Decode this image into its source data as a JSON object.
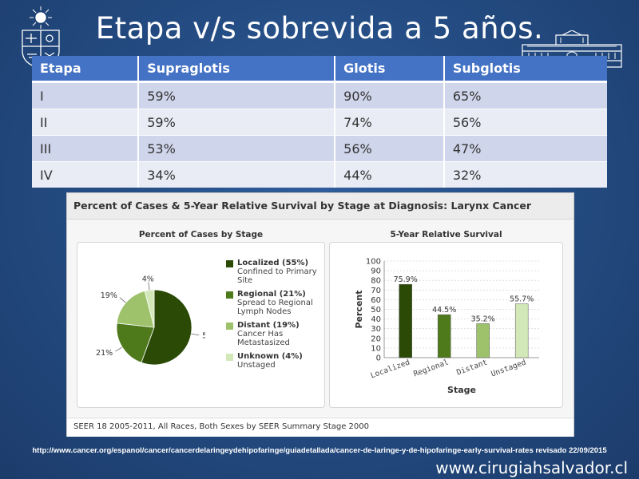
{
  "slide": {
    "title": "Etapa v/s sobrevida a 5 años.",
    "source_url": "http://www.cancer.org/espanol/cancer/cancerdelaringeydehipofaringe/guiadetallada/cancer-de-laringe-y-de-hipofaringe-early-survival-rates revisado 22/09/2015",
    "site_url": "www.cirugiahsalvador.cl"
  },
  "table": {
    "headers": [
      "Etapa",
      "Supraglotis",
      "Glotis",
      "Subglotis"
    ],
    "rows": [
      [
        "I",
        "59%",
        "90%",
        "65%"
      ],
      [
        "II",
        "59%",
        "74%",
        "56%"
      ],
      [
        "III",
        "53%",
        "56%",
        "47%"
      ],
      [
        "IV",
        "34%",
        "44%",
        "32%"
      ]
    ]
  },
  "figure": {
    "title": "Percent of Cases & 5-Year Relative Survival by Stage at Diagnosis: Larynx Cancer",
    "footer": "SEER 18 2005-2011, All Races, Both Sexes by SEER Summary Stage 2000",
    "legend": [
      {
        "name": "Localized (55%)",
        "desc": "Confined to Primary Site",
        "color": "#2a4a06"
      },
      {
        "name": "Regional (21%)",
        "desc": "Spread to Regional Lymph Nodes",
        "color": "#4f7a1c"
      },
      {
        "name": "Distant (19%)",
        "desc": "Cancer Has Metastasized",
        "color": "#9dc26b"
      },
      {
        "name": "Unknown (4%)",
        "desc": "Unstaged",
        "color": "#d3e8b8"
      }
    ]
  },
  "chart_data": [
    {
      "type": "pie",
      "title": "Percent of Cases by Stage",
      "categories": [
        "Localized",
        "Regional",
        "Distant",
        "Unknown"
      ],
      "values": [
        55,
        21,
        19,
        4
      ],
      "labels": [
        "55%",
        "21%",
        "19%",
        "4%"
      ],
      "colors": [
        "#2a4a06",
        "#4f7a1c",
        "#9dc26b",
        "#d3e8b8"
      ],
      "legend": "right"
    },
    {
      "type": "bar",
      "title": "5-Year Relative Survival",
      "categories": [
        "Localized",
        "Regional",
        "Distant",
        "Unstaged"
      ],
      "values": [
        75.9,
        44.5,
        35.2,
        55.7
      ],
      "labels": [
        "75.9%",
        "44.5%",
        "35.2%",
        "55.7%"
      ],
      "colors": [
        "#2a4a06",
        "#4f7a1c",
        "#9dc26b",
        "#d3e8b8"
      ],
      "xlabel": "Stage",
      "ylabel": "Percent",
      "ylim": [
        0,
        100
      ],
      "yticks": [
        0,
        10,
        20,
        30,
        40,
        50,
        60,
        70,
        80,
        90,
        100
      ],
      "grid": true
    }
  ]
}
